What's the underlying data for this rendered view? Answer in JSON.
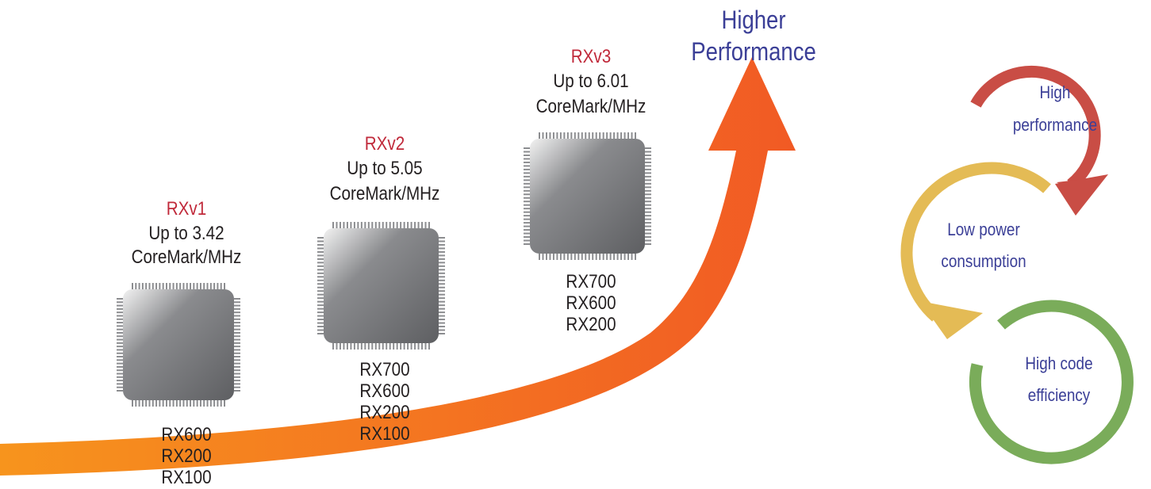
{
  "arrow": {
    "label_line1": "Higher",
    "label_line2": "Performance",
    "gradient_start": "#f7941d",
    "gradient_end": "#f15a24"
  },
  "generations": [
    {
      "version": "RXv1",
      "spec_line1": "Up to 3.42",
      "spec_line2": "CoreMark/MHz",
      "series": [
        "RX600",
        "RX200",
        "RX100"
      ]
    },
    {
      "version": "RXv2",
      "spec_line1": "Up to 5.05",
      "spec_line2": "CoreMark/MHz",
      "series": [
        "RX700",
        "RX600",
        "RX200",
        "RX100"
      ]
    },
    {
      "version": "RXv3",
      "spec_line1": "Up to 6.01",
      "spec_line2": "CoreMark/MHz",
      "series": [
        "RX700",
        "RX600",
        "RX200"
      ]
    }
  ],
  "cycle": {
    "items": [
      {
        "line1": "High",
        "line2": "performance",
        "color": "#c94d45"
      },
      {
        "line1": "Low power",
        "line2": "consumption",
        "color": "#e4bb55"
      },
      {
        "line1": "High code",
        "line2": "efficiency",
        "color": "#7aac5a"
      }
    ]
  },
  "colors": {
    "version_text": "#c0293a",
    "body_text": "#231f20",
    "accent_text": "#3b3f97",
    "chip": "#6d6e71"
  }
}
